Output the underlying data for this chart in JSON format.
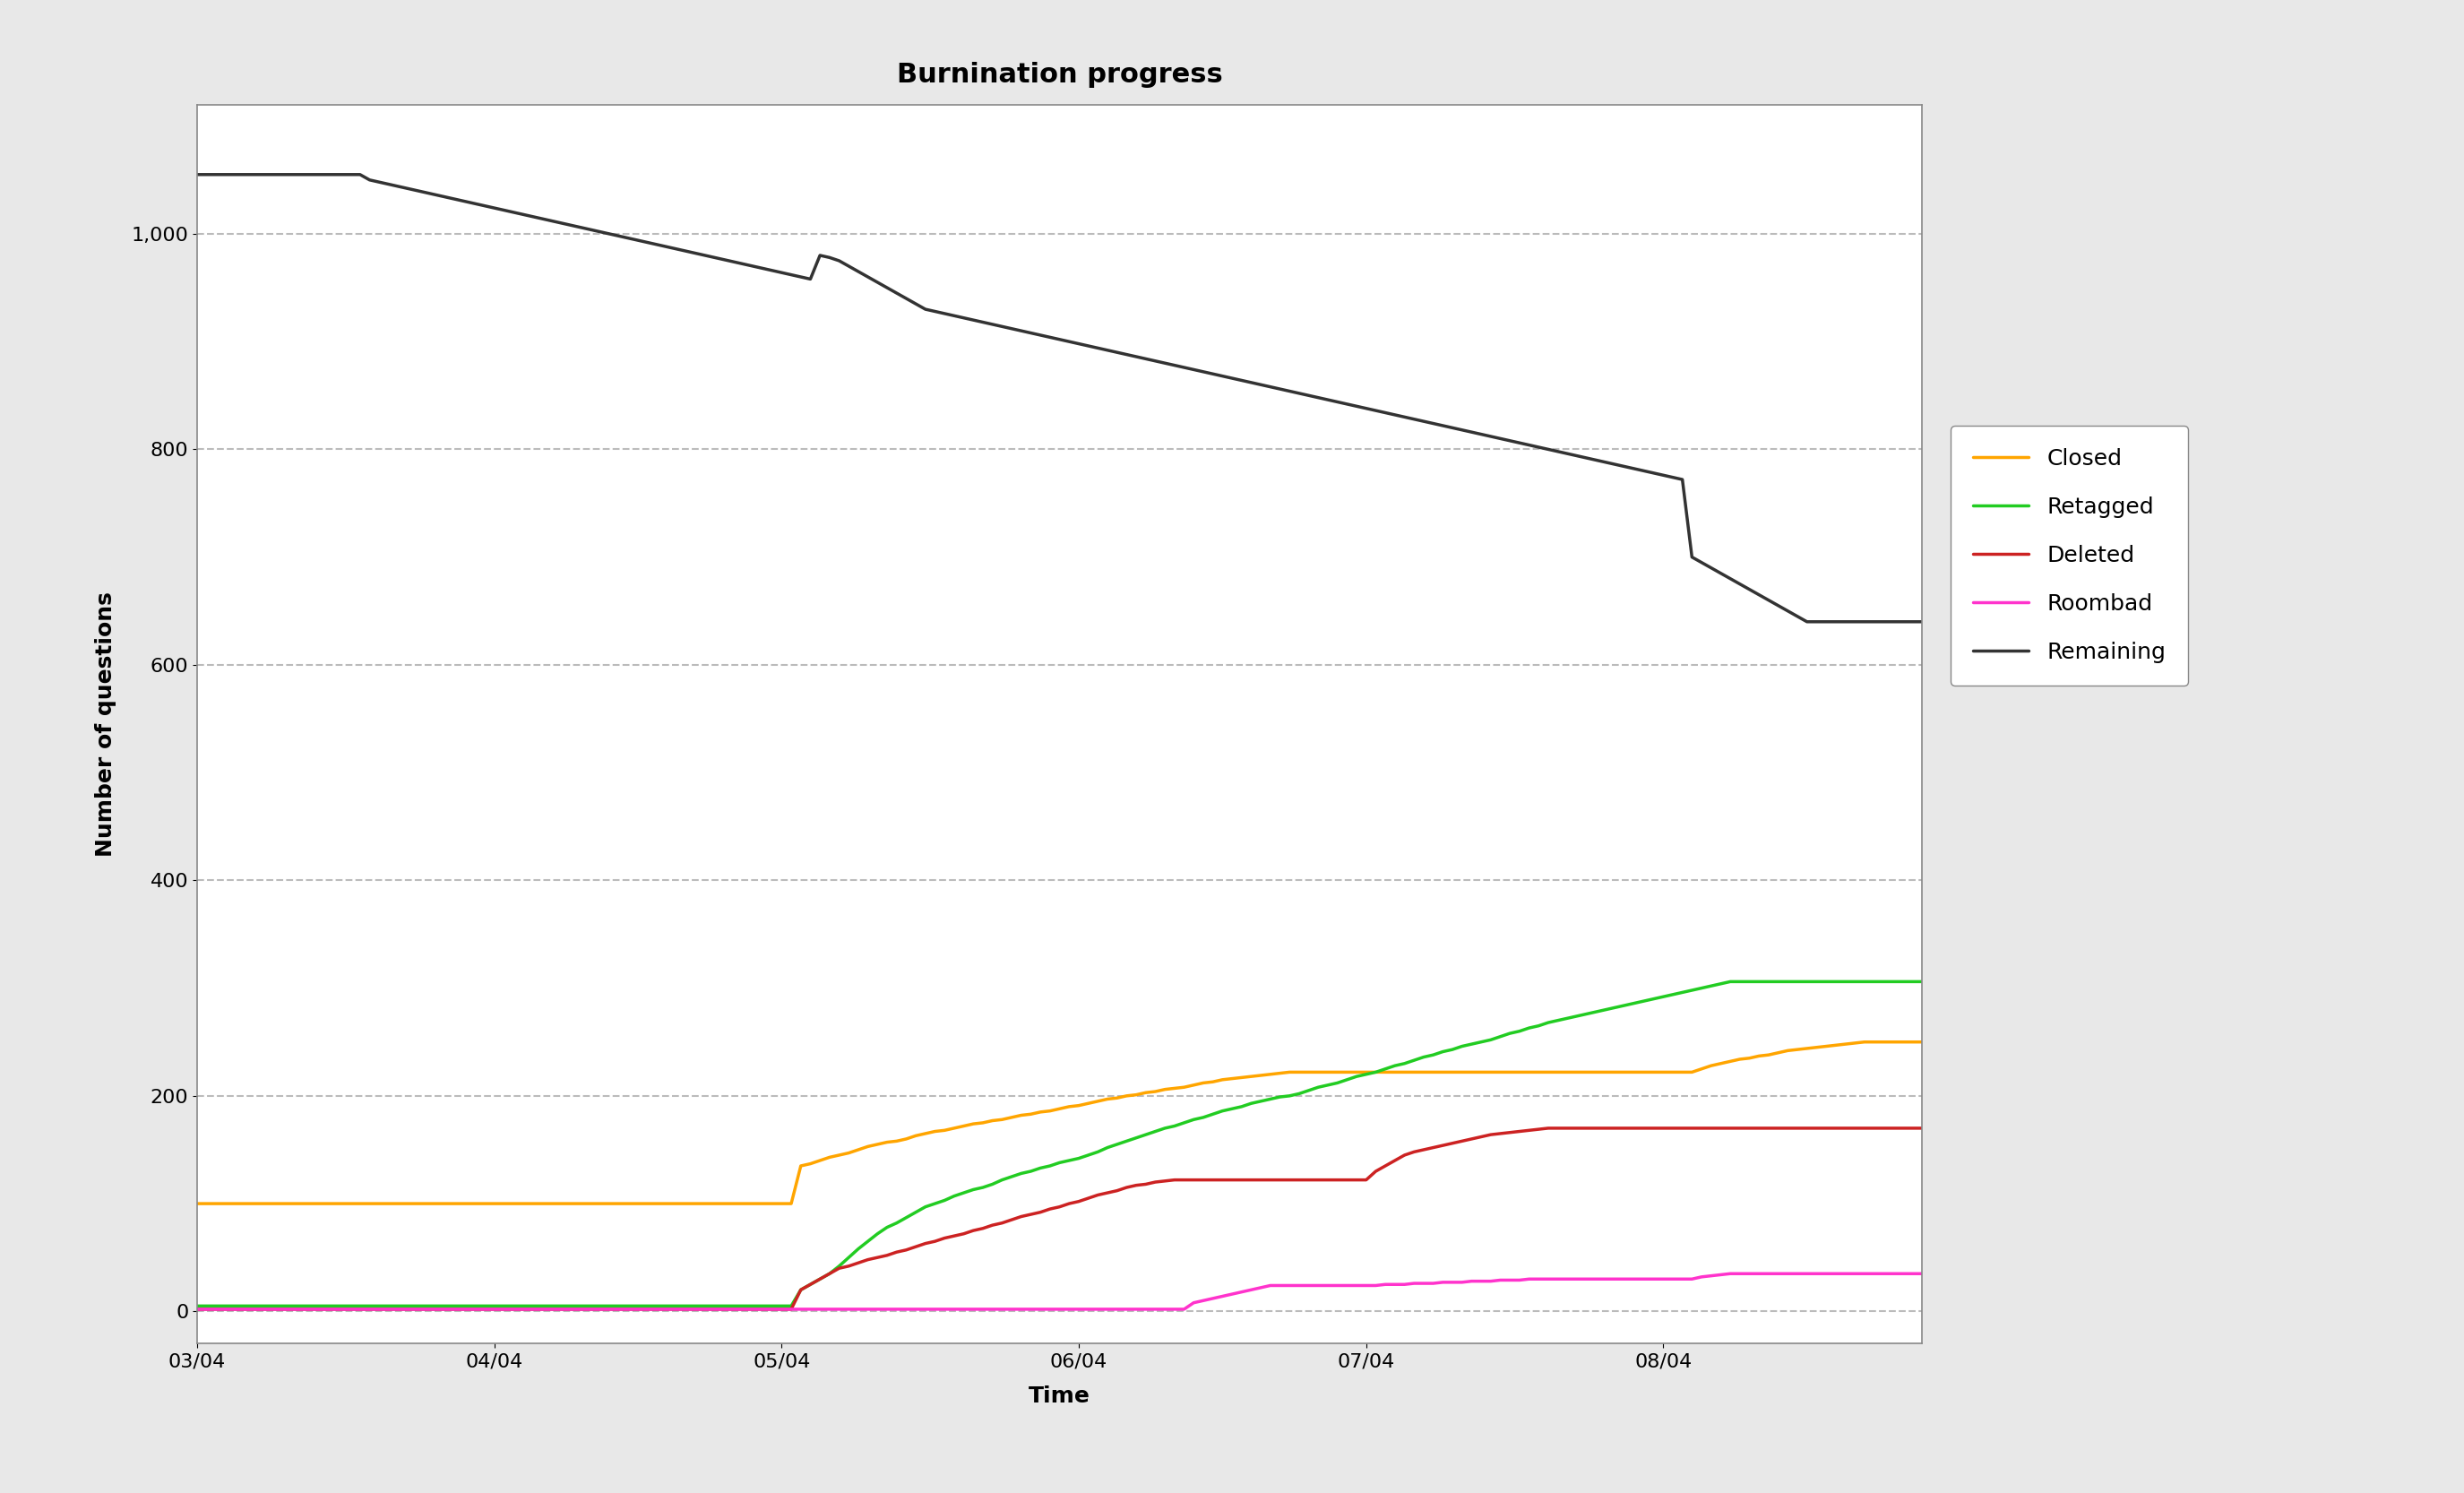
{
  "title": "Burnination progress",
  "xlabel": "Time",
  "ylabel": "Number of questions",
  "background_color": "#e8e8e8",
  "plot_background": "#ffffff",
  "grid_color": "#bbbbbb",
  "grid_style": "--",
  "ylim": [
    -30,
    1120
  ],
  "xlim": [
    0,
    180
  ],
  "title_fontsize": 22,
  "axis_label_fontsize": 18,
  "tick_fontsize": 16,
  "legend_fontsize": 18,
  "series": {
    "Closed": {
      "color": "#FFA500",
      "linewidth": 2.5
    },
    "Retagged": {
      "color": "#22cc22",
      "linewidth": 2.5
    },
    "Deleted": {
      "color": "#cc2222",
      "linewidth": 2.5
    },
    "Roombad": {
      "color": "#ff33cc",
      "linewidth": 2.5
    },
    "Remaining": {
      "color": "#333333",
      "linewidth": 2.5
    }
  },
  "x_ticks_labels": [
    "03/04",
    "04/04",
    "05/04",
    "06/04",
    "07/04",
    "08/04"
  ],
  "x_ticks_positions": [
    0,
    31,
    61,
    92,
    122,
    153
  ],
  "yticks": [
    0,
    200,
    400,
    600,
    800,
    1000
  ],
  "closed": [
    100,
    100,
    100,
    100,
    100,
    100,
    100,
    100,
    100,
    100,
    100,
    100,
    100,
    100,
    100,
    100,
    100,
    100,
    100,
    100,
    100,
    100,
    100,
    100,
    100,
    100,
    100,
    100,
    100,
    100,
    100,
    100,
    100,
    100,
    100,
    100,
    100,
    100,
    100,
    100,
    100,
    100,
    100,
    100,
    100,
    100,
    100,
    100,
    100,
    100,
    100,
    100,
    100,
    100,
    100,
    100,
    100,
    100,
    100,
    100,
    100,
    100,
    100,
    135,
    137,
    140,
    143,
    145,
    147,
    150,
    153,
    155,
    157,
    158,
    160,
    163,
    165,
    167,
    168,
    170,
    172,
    174,
    175,
    177,
    178,
    180,
    182,
    183,
    185,
    186,
    188,
    190,
    191,
    193,
    195,
    197,
    198,
    200,
    201,
    203,
    204,
    206,
    207,
    208,
    210,
    212,
    213,
    215,
    216,
    217,
    218,
    219,
    220,
    221,
    222,
    222,
    222,
    222,
    222,
    222,
    222,
    222,
    222,
    222,
    222,
    222,
    222,
    222,
    222,
    222,
    222,
    222,
    222,
    222,
    222,
    222,
    222,
    222,
    222,
    222,
    222,
    222,
    222,
    222,
    222,
    222,
    222,
    222,
    222,
    222,
    222,
    222,
    222,
    222,
    222,
    222,
    222,
    225,
    228,
    230,
    232,
    234,
    235,
    237,
    238,
    240,
    242,
    243,
    244,
    245,
    246,
    247,
    248,
    249,
    250,
    250,
    250,
    250,
    250,
    250,
    250,
    250,
    250,
    250,
    250
  ],
  "retagged": [
    5,
    5,
    5,
    5,
    5,
    5,
    5,
    5,
    5,
    5,
    5,
    5,
    5,
    5,
    5,
    5,
    5,
    5,
    5,
    5,
    5,
    5,
    5,
    5,
    5,
    5,
    5,
    5,
    5,
    5,
    5,
    5,
    5,
    5,
    5,
    5,
    5,
    5,
    5,
    5,
    5,
    5,
    5,
    5,
    5,
    5,
    5,
    5,
    5,
    5,
    5,
    5,
    5,
    5,
    5,
    5,
    5,
    5,
    5,
    5,
    5,
    5,
    5,
    20,
    25,
    30,
    35,
    42,
    50,
    58,
    65,
    72,
    78,
    82,
    87,
    92,
    97,
    100,
    103,
    107,
    110,
    113,
    115,
    118,
    122,
    125,
    128,
    130,
    133,
    135,
    138,
    140,
    142,
    145,
    148,
    152,
    155,
    158,
    161,
    164,
    167,
    170,
    172,
    175,
    178,
    180,
    183,
    186,
    188,
    190,
    193,
    195,
    197,
    199,
    200,
    202,
    205,
    208,
    210,
    212,
    215,
    218,
    220,
    222,
    225,
    228,
    230,
    233,
    236,
    238,
    241,
    243,
    246,
    248,
    250,
    252,
    255,
    258,
    260,
    263,
    265,
    268,
    270,
    272,
    274,
    276,
    278,
    280,
    282,
    284,
    286,
    288,
    290,
    292,
    294,
    296,
    298,
    300,
    302,
    304,
    306,
    306,
    306,
    306,
    306,
    306,
    306,
    306,
    306,
    306,
    306,
    306,
    306,
    306,
    306,
    306,
    306,
    306,
    306,
    306,
    306,
    306,
    306,
    306,
    306,
    306,
    306
  ],
  "deleted": [
    2,
    2,
    2,
    2,
    2,
    2,
    2,
    2,
    2,
    2,
    2,
    2,
    2,
    2,
    2,
    2,
    2,
    2,
    2,
    2,
    2,
    2,
    2,
    2,
    2,
    2,
    2,
    2,
    2,
    2,
    2,
    2,
    2,
    2,
    2,
    2,
    2,
    2,
    2,
    2,
    2,
    2,
    2,
    2,
    2,
    2,
    2,
    2,
    2,
    2,
    2,
    2,
    2,
    2,
    2,
    2,
    2,
    2,
    2,
    2,
    2,
    2,
    2,
    20,
    25,
    30,
    35,
    40,
    42,
    45,
    48,
    50,
    52,
    55,
    57,
    60,
    63,
    65,
    68,
    70,
    72,
    75,
    77,
    80,
    82,
    85,
    88,
    90,
    92,
    95,
    97,
    100,
    102,
    105,
    108,
    110,
    112,
    115,
    117,
    118,
    120,
    121,
    122,
    122,
    122,
    122,
    122,
    122,
    122,
    122,
    122,
    122,
    122,
    122,
    122,
    122,
    122,
    122,
    122,
    122,
    122,
    122,
    122,
    130,
    135,
    140,
    145,
    148,
    150,
    152,
    154,
    156,
    158,
    160,
    162,
    164,
    165,
    166,
    167,
    168,
    169,
    170,
    170,
    170,
    170,
    170,
    170,
    170,
    170,
    170,
    170,
    170,
    170,
    170,
    170,
    170,
    170,
    170,
    170,
    170,
    170,
    170,
    170,
    170,
    170,
    170,
    170,
    170,
    170,
    170,
    170,
    170,
    170,
    170,
    170,
    170,
    170,
    170,
    170,
    170,
    170,
    170,
    170,
    170,
    170,
    170,
    170
  ],
  "roombad": [
    2,
    2,
    2,
    2,
    2,
    2,
    2,
    2,
    2,
    2,
    2,
    2,
    2,
    2,
    2,
    2,
    2,
    2,
    2,
    2,
    2,
    2,
    2,
    2,
    2,
    2,
    2,
    2,
    2,
    2,
    2,
    2,
    2,
    2,
    2,
    2,
    2,
    2,
    2,
    2,
    2,
    2,
    2,
    2,
    2,
    2,
    2,
    2,
    2,
    2,
    2,
    2,
    2,
    2,
    2,
    2,
    2,
    2,
    2,
    2,
    2,
    2,
    2,
    2,
    2,
    2,
    2,
    2,
    2,
    2,
    2,
    2,
    2,
    2,
    2,
    2,
    2,
    2,
    2,
    2,
    2,
    2,
    2,
    2,
    2,
    2,
    2,
    2,
    2,
    2,
    2,
    2,
    2,
    2,
    2,
    2,
    2,
    2,
    2,
    2,
    2,
    2,
    2,
    2,
    8,
    10,
    12,
    14,
    16,
    18,
    20,
    22,
    24,
    24,
    24,
    24,
    24,
    24,
    24,
    24,
    24,
    24,
    24,
    24,
    25,
    25,
    25,
    26,
    26,
    26,
    27,
    27,
    27,
    28,
    28,
    28,
    29,
    29,
    29,
    30,
    30,
    30,
    30,
    30,
    30,
    30,
    30,
    30,
    30,
    30,
    30,
    30,
    30,
    30,
    30,
    30,
    30,
    32,
    33,
    34,
    35,
    35,
    35,
    35,
    35,
    35,
    35,
    35,
    35,
    35,
    35,
    35,
    35,
    35,
    35,
    35,
    35,
    35,
    35,
    35,
    35,
    35,
    35,
    35,
    35,
    35,
    35
  ],
  "remaining": [
    1055,
    1055,
    1055,
    1055,
    1055,
    1055,
    1055,
    1055,
    1055,
    1055,
    1055,
    1055,
    1055,
    1055,
    1055,
    1055,
    1055,
    1055,
    1050,
    1048,
    1046,
    1044,
    1042,
    1040,
    1038,
    1036,
    1034,
    1032,
    1030,
    1028,
    1026,
    1024,
    1022,
    1020,
    1018,
    1016,
    1014,
    1012,
    1010,
    1008,
    1006,
    1004,
    1002,
    1000,
    998,
    996,
    994,
    992,
    990,
    988,
    986,
    984,
    982,
    980,
    978,
    976,
    974,
    972,
    970,
    968,
    966,
    964,
    962,
    960,
    958,
    980,
    978,
    975,
    970,
    965,
    960,
    955,
    950,
    945,
    940,
    935,
    930,
    928,
    926,
    924,
    922,
    920,
    918,
    916,
    914,
    912,
    910,
    908,
    906,
    904,
    902,
    900,
    898,
    896,
    894,
    892,
    890,
    888,
    886,
    884,
    882,
    880,
    878,
    876,
    874,
    872,
    870,
    868,
    866,
    864,
    862,
    860,
    858,
    856,
    854,
    852,
    850,
    848,
    846,
    844,
    842,
    840,
    838,
    836,
    834,
    832,
    830,
    828,
    826,
    824,
    822,
    820,
    818,
    816,
    814,
    812,
    810,
    808,
    806,
    804,
    802,
    800,
    798,
    796,
    794,
    792,
    790,
    788,
    786,
    784,
    782,
    780,
    778,
    776,
    774,
    772,
    700,
    695,
    690,
    685,
    680,
    675,
    670,
    665,
    660,
    655,
    650,
    645,
    640,
    640,
    640,
    640,
    640,
    640,
    640,
    640,
    640,
    640,
    640,
    640,
    640,
    640,
    640,
    640,
    640,
    640,
    640
  ]
}
